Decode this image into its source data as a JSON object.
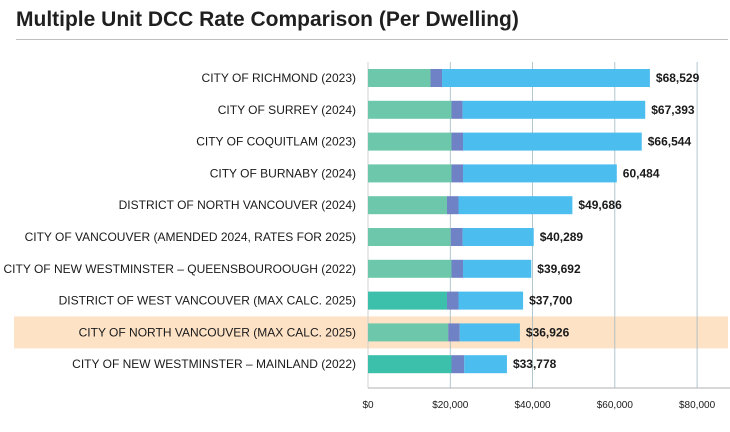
{
  "colors": {
    "segment1": "#6cc7ab",
    "segment1_dark": "#3cbfab",
    "segment2": "#6f82c5",
    "segment3": "#4bbdee",
    "highlight": "#fde2c6",
    "gridline": "#9fb8c2"
  },
  "chart_data": {
    "type": "bar",
    "orientation": "horizontal",
    "stacked": true,
    "title": "Multiple Unit DCC Rate Comparison (Per Dwelling)",
    "xlim": [
      0,
      88000
    ],
    "xticks": [
      0,
      20000,
      40000,
      60000,
      80000
    ],
    "xtick_labels": [
      "$0",
      "$20,000",
      "$40,000",
      "$60,000",
      "$80,000"
    ],
    "highlighted_category": "CITY OF NORTH VANCOUVER (MAX CALC. 2025)",
    "categories": [
      "CITY OF RICHMOND (2023)",
      "CITY OF SURREY (2024)",
      "CITY OF COQUITLAM (2023)",
      "CITY OF BURNABY (2024)",
      "DISTRICT OF NORTH VANCOUVER (2024)",
      "CITY OF VANCOUVER (AMENDED 2024, RATES FOR 2025)",
      "CITY OF NEW WESTMINSTER – QUEENSBOUROOUGH (2022)",
      "DISTRICT OF WEST VANCOUVER (MAX CALC. 2025)",
      "CITY OF NORTH VANCOUVER (MAX CALC. 2025)",
      "CITY OF NEW WESTMINSTER – MAINLAND (2022)"
    ],
    "totals": [
      68529,
      67393,
      66544,
      60484,
      49686,
      40289,
      39692,
      37700,
      36926,
      33778
    ],
    "total_labels": [
      "$68,529",
      "$67,393",
      "$66,544",
      "60,484",
      "$49,686",
      "$40,289",
      "$39,692",
      "$37,700",
      "$36,926",
      "$33,778"
    ],
    "series": [
      {
        "name": "Segment 1",
        "values": [
          15200,
          20300,
          20300,
          20300,
          19200,
          20100,
          20300,
          19200,
          19500,
          20300
        ]
      },
      {
        "name": "Segment 2",
        "values": [
          2800,
          2700,
          2800,
          2800,
          2800,
          2900,
          2800,
          2800,
          2800,
          3100
        ]
      },
      {
        "name": "Segment 3",
        "values": [
          50529,
          44393,
          43444,
          37384,
          27686,
          17289,
          16592,
          15700,
          14626,
          10378
        ]
      }
    ]
  }
}
